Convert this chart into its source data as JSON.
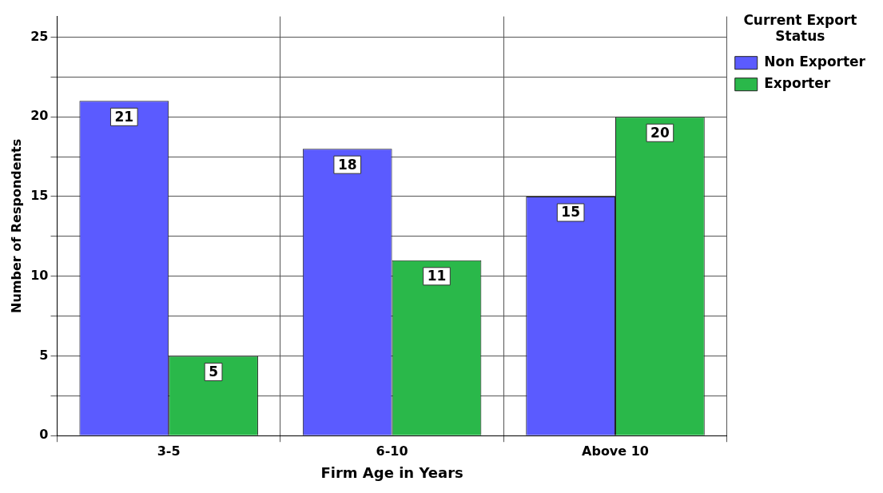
{
  "chart_data": {
    "type": "bar",
    "xlabel": "Firm Age in Years",
    "ylabel": "Number of Respondents",
    "legend_title": "Current Export Status",
    "categories": [
      "3-5",
      "6-10",
      "Above 10"
    ],
    "series": [
      {
        "name": "Non Exporter",
        "color": "#5b5bff",
        "values": [
          21,
          18,
          15
        ]
      },
      {
        "name": "Exporter",
        "color": "#2ab84a",
        "values": [
          5,
          11,
          20
        ]
      }
    ],
    "ylim": [
      0,
      26.3
    ],
    "yticks": [
      0,
      {
        "value": 2.5,
        "label": null
      },
      5,
      {
        "value": 7.5,
        "label": null
      },
      10,
      {
        "value": 12.5,
        "label": null
      },
      15,
      {
        "value": 17.5,
        "label": null
      },
      20,
      {
        "value": 22.5,
        "label": null
      },
      25
    ],
    "grid": true,
    "legend": "top right",
    "data_labels": true
  }
}
